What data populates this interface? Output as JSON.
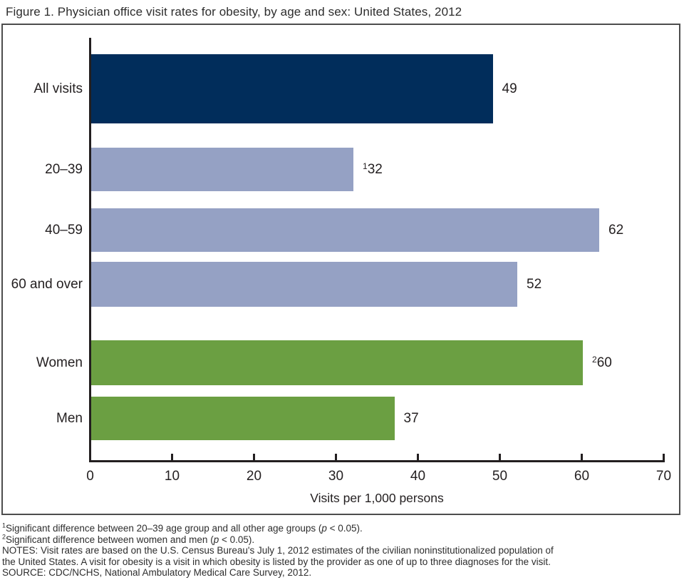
{
  "figure": {
    "title": "Figure 1. Physician office visit rates for obesity, by age and sex: United States, 2012"
  },
  "chart_data": {
    "type": "bar",
    "orientation": "horizontal",
    "title": "Figure 1. Physician office visit rates for obesity, by age and sex: United States, 2012",
    "xlabel": "Visits per 1,000 persons",
    "ylabel": "",
    "xlim": [
      0,
      70
    ],
    "x_ticks": [
      0,
      10,
      20,
      30,
      40,
      50,
      60,
      70
    ],
    "grid": false,
    "legend": "none",
    "categories": [
      "All visits",
      "20–39",
      "40–59",
      "60 and over",
      "Women",
      "Men"
    ],
    "values": [
      49,
      32,
      62,
      52,
      60,
      37
    ],
    "bars": [
      {
        "category": "All visits",
        "value": 49,
        "value_label": "49",
        "superscript": "",
        "group": "total",
        "color": "#012d5b"
      },
      {
        "category": "20–39",
        "value": 32,
        "value_label": "32",
        "superscript": "1",
        "group": "age",
        "color": "#95a1c4"
      },
      {
        "category": "40–59",
        "value": 62,
        "value_label": "62",
        "superscript": "",
        "group": "age",
        "color": "#95a1c4"
      },
      {
        "category": "60 and over",
        "value": 52,
        "value_label": "52",
        "superscript": "",
        "group": "age",
        "color": "#95a1c4"
      },
      {
        "category": "Women",
        "value": 60,
        "value_label": "60",
        "superscript": "2",
        "group": "sex",
        "color": "#6b9f42"
      },
      {
        "category": "Men",
        "value": 37,
        "value_label": "37",
        "superscript": "",
        "group": "sex",
        "color": "#6b9f42"
      }
    ],
    "colors": {
      "total_bar": "#012d5b",
      "age_bar": "#95a1c4",
      "sex_bar": "#6b9f42",
      "axis": "#231f20",
      "frame_border": "#4d4d4d"
    }
  },
  "footnotes": {
    "lines": [
      {
        "segments": [
          {
            "text": "1",
            "sup": true
          },
          {
            "text": "Significant difference between 20–39 age group and all other age groups ("
          },
          {
            "text": "p",
            "italic": true
          },
          {
            "text": " < 0.05)."
          }
        ]
      },
      {
        "segments": [
          {
            "text": "2",
            "sup": true
          },
          {
            "text": "Significant difference between women and men ("
          },
          {
            "text": "p",
            "italic": true
          },
          {
            "text": " < 0.05)."
          }
        ]
      },
      {
        "segments": [
          {
            "text": "NOTES: Visit rates are based on the U.S. Census Bureau's July 1, 2012 estimates of the civilian noninstitutionalized population of"
          }
        ]
      },
      {
        "segments": [
          {
            "text": "the United States. A visit for obesity is a visit in which obesity is listed by the provider as one of up to three diagnoses for the visit."
          }
        ]
      },
      {
        "segments": [
          {
            "text": "SOURCE: CDC/NCHS, National Ambulatory Medical Care Survey, 2012."
          }
        ]
      }
    ]
  }
}
